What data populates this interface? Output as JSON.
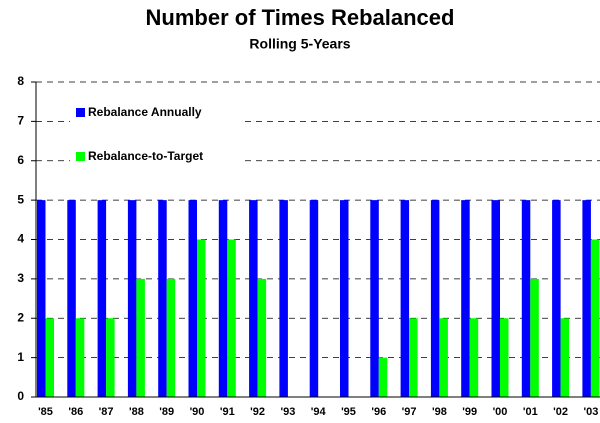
{
  "chart_data": {
    "type": "bar",
    "title": "Number of Times Rebalanced",
    "subtitle": "Rolling 5-Years",
    "categories": [
      "'85",
      "'86",
      "'87",
      "'88",
      "'89",
      "'90",
      "'91",
      "'92",
      "'93",
      "'94",
      "'95",
      "'96",
      "'97",
      "'98",
      "'99",
      "'00",
      "'01",
      "'02",
      "'03"
    ],
    "series": [
      {
        "name": "Rebalance Annually",
        "color": "#0000ff",
        "values": [
          5,
          5,
          5,
          5,
          5,
          5,
          5,
          5,
          5,
          5,
          5,
          5,
          5,
          5,
          5,
          5,
          5,
          5,
          5
        ]
      },
      {
        "name": "Rebalance-to-Target",
        "color": "#00ff00",
        "values": [
          2,
          2,
          2,
          3,
          3,
          4,
          4,
          3,
          0,
          0,
          0,
          1,
          2,
          2,
          2,
          2,
          3,
          2,
          4
        ]
      }
    ],
    "ylim": [
      0,
      8
    ],
    "yticks": [
      0,
      1,
      2,
      3,
      4,
      5,
      6,
      7,
      8
    ],
    "grid": true
  }
}
